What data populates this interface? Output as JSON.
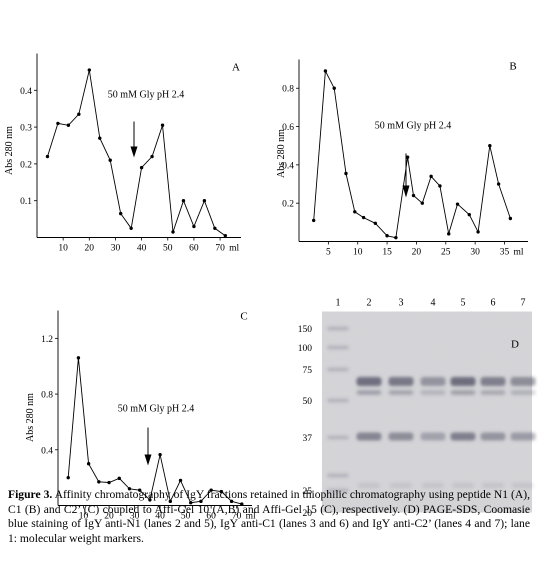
{
  "chart_data": [
    {
      "type": "line",
      "panel_label": "A",
      "ylabel": "Abs 280 nm",
      "x_unit": "ml",
      "annotation": "50 mM Gly pH 2.4",
      "annotation_arrow_x": 36,
      "xlim": [
        0,
        78
      ],
      "ylim": [
        0,
        0.5
      ],
      "xticks": [
        10,
        20,
        30,
        40,
        50,
        60,
        70
      ],
      "yticks": [
        0.1,
        0.2,
        0.3,
        0.4
      ],
      "x": [
        4,
        8,
        12,
        16,
        20,
        24,
        28,
        32,
        36,
        40,
        44,
        48,
        52,
        56,
        60,
        64,
        68,
        72
      ],
      "y": [
        0.22,
        0.31,
        0.305,
        0.335,
        0.455,
        0.27,
        0.21,
        0.065,
        0.025,
        0.19,
        0.22,
        0.305,
        0.015,
        0.1,
        0.03,
        0.1,
        0.025,
        0.005
      ]
    },
    {
      "type": "line",
      "panel_label": "B",
      "ylabel": "Abs 280 nm",
      "x_unit": "ml",
      "annotation": "50 mM Gly pH 2.4",
      "annotation_arrow_x": 16.5,
      "xlim": [
        0,
        39
      ],
      "ylim": [
        0,
        0.95
      ],
      "xticks": [
        5,
        10,
        15,
        20,
        25,
        30,
        35
      ],
      "yticks": [
        0.2,
        0.4,
        0.6,
        0.8
      ],
      "x": [
        2.5,
        4.5,
        6,
        8,
        9.5,
        11,
        13,
        15,
        16.5,
        18.5,
        19.5,
        21,
        22.5,
        24,
        25.5,
        27,
        29,
        30.5,
        32.5,
        34,
        36
      ],
      "y": [
        0.11,
        0.89,
        0.8,
        0.355,
        0.155,
        0.125,
        0.095,
        0.03,
        0.02,
        0.44,
        0.24,
        0.2,
        0.34,
        0.29,
        0.04,
        0.195,
        0.14,
        0.05,
        0.5,
        0.3,
        0.12
      ]
    },
    {
      "type": "line",
      "panel_label": "C",
      "ylabel": "Abs 280 nm",
      "x_unit": "ml",
      "annotation": "50 mM Gly pH 2.4",
      "annotation_arrow_x": 35,
      "xlim": [
        0,
        76
      ],
      "ylim": [
        0,
        1.4
      ],
      "xticks": [
        10,
        20,
        30,
        40,
        50,
        60,
        70
      ],
      "yticks": [
        0.4,
        0.8,
        1.2
      ],
      "x": [
        4,
        8,
        12,
        16,
        20,
        24,
        28,
        32,
        36,
        40,
        44,
        48,
        52,
        56,
        60,
        64,
        68,
        72
      ],
      "y": [
        0.2,
        1.06,
        0.3,
        0.17,
        0.165,
        0.195,
        0.12,
        0.11,
        0.04,
        0.365,
        0.03,
        0.18,
        0.02,
        0.03,
        0.11,
        0.1,
        0.03,
        0.01
      ]
    }
  ],
  "gel": {
    "panel_label": "D",
    "lane_numbers": [
      "1",
      "2",
      "3",
      "4",
      "5",
      "6",
      "7"
    ],
    "marker_labels": [
      "150",
      "100",
      "75",
      "50",
      "37",
      "25",
      "20"
    ]
  },
  "caption": {
    "label": "Figure 3.",
    "text": "Affinity chromatography of IgY fractions retained in thiophilic chromatography using peptide N1 (A), C1 (B) and C2’ (C) coupled to Affi-Gel 10 (A,B) and Affi-Gel 15 (C), respectively. (D) PAGE-SDS, Coomasie blue staining of IgY anti-N1 (lanes 2 and 5), IgY anti-C1 (lanes 3 and 6) and IgY anti-C2’ (lanes 4 and 7); lane 1: molecular weight markers."
  }
}
